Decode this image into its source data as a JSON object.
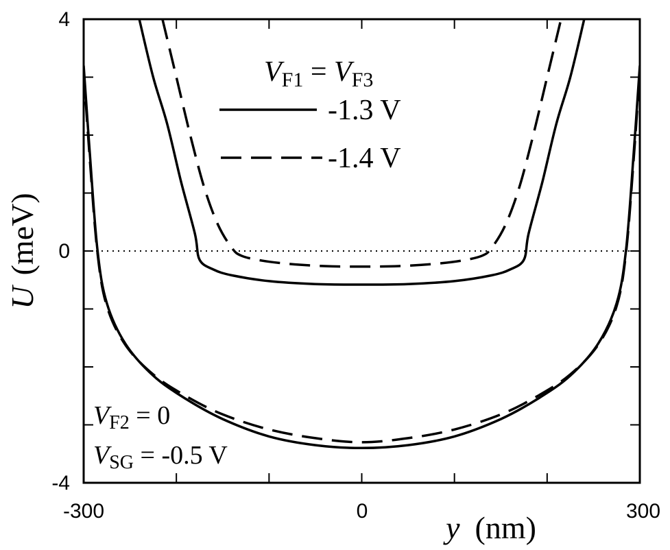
{
  "chart_data": {
    "type": "line",
    "title": "",
    "xlabel": {
      "symbol": "y",
      "unit": "(nm)"
    },
    "ylabel": {
      "symbol": "U",
      "unit": "(meV)"
    },
    "xlim": [
      -300,
      300
    ],
    "ylim": [
      -4,
      4
    ],
    "x_tick_labels": [
      "-300",
      "0",
      "300"
    ],
    "y_tick_labels": [
      "4",
      "0",
      "-4"
    ],
    "x_ticks_minor": [
      -200,
      -100,
      100,
      200
    ],
    "y_ticks_minor": [
      -3,
      -2,
      -1,
      1,
      2,
      3
    ],
    "reference_line": {
      "y": 0,
      "style": "dotted"
    },
    "legend": {
      "title": {
        "v": "V",
        "s1": "F1",
        "eq": " = ",
        "v2": "V",
        "s2": "F3"
      },
      "entries": [
        {
          "label": "-1.3 V",
          "style": "solid"
        },
        {
          "label": "-1.4 V",
          "style": "dashed"
        }
      ],
      "placement": "top-center"
    },
    "annotation": {
      "line1": {
        "v": "V",
        "sub": "F2",
        "rest": " = 0"
      },
      "line2": {
        "v": "V",
        "sub": "SG",
        "rest": " = -0.5 V"
      },
      "placement": "bottom-left"
    },
    "series": [
      {
        "name": "-1.3 V (upper)",
        "style": "solid",
        "x": [
          -240,
          -225,
          -210,
          -195,
          -180,
          -175,
          -160,
          -140,
          -100,
          -50,
          0,
          50,
          100,
          140,
          160,
          175,
          180,
          195,
          210,
          225,
          240
        ],
        "y": [
          4.0,
          3.0,
          2.2,
          1.2,
          0.3,
          -0.15,
          -0.32,
          -0.42,
          -0.52,
          -0.57,
          -0.58,
          -0.57,
          -0.52,
          -0.42,
          -0.32,
          -0.15,
          0.3,
          1.2,
          2.2,
          3.0,
          4.0
        ]
      },
      {
        "name": "-1.4 V (upper)",
        "style": "dashed",
        "x": [
          -215,
          -200,
          -185,
          -170,
          -155,
          -140,
          -130,
          -110,
          -80,
          -40,
          0,
          40,
          80,
          110,
          130,
          140,
          155,
          170,
          185,
          200,
          215
        ],
        "y": [
          4.0,
          3.0,
          2.0,
          1.1,
          0.45,
          0.05,
          -0.08,
          -0.16,
          -0.22,
          -0.26,
          -0.27,
          -0.26,
          -0.22,
          -0.16,
          -0.08,
          0.05,
          0.45,
          1.1,
          2.0,
          3.0,
          4.0
        ]
      },
      {
        "name": "-1.3 V (lower)",
        "style": "solid",
        "x": [
          -300,
          -293,
          -285,
          -275,
          -255,
          -225,
          -190,
          -150,
          -100,
          -50,
          0,
          50,
          100,
          150,
          190,
          225,
          255,
          275,
          285,
          293,
          300
        ],
        "y": [
          3.2,
          1.6,
          0.0,
          -0.9,
          -1.6,
          -2.15,
          -2.55,
          -2.9,
          -3.2,
          -3.35,
          -3.4,
          -3.35,
          -3.2,
          -2.9,
          -2.55,
          -2.15,
          -1.6,
          -0.9,
          0.0,
          1.6,
          3.2
        ]
      },
      {
        "name": "-1.4 V (lower)",
        "style": "dashed",
        "x": [
          -300,
          -293,
          -285,
          -275,
          -255,
          -225,
          -190,
          -150,
          -100,
          -50,
          0,
          50,
          100,
          150,
          190,
          225,
          255,
          275,
          285,
          293,
          300
        ],
        "y": [
          3.1,
          1.5,
          -0.05,
          -0.95,
          -1.62,
          -2.13,
          -2.5,
          -2.82,
          -3.08,
          -3.23,
          -3.3,
          -3.23,
          -3.08,
          -2.82,
          -2.5,
          -2.13,
          -1.62,
          -0.95,
          -0.05,
          1.5,
          3.1
        ]
      }
    ]
  }
}
